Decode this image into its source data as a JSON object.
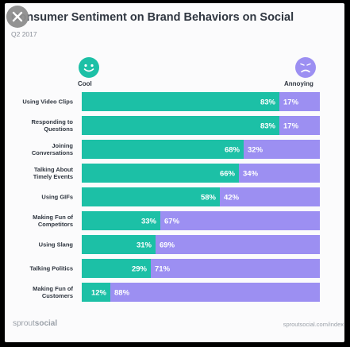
{
  "chart_data": {
    "type": "bar",
    "title": "Consumer Sentiment on Brand Behaviors on Social",
    "subtitle": "Q2 2017",
    "stacked": true,
    "orientation": "horizontal",
    "xlim": [
      0,
      100
    ],
    "categories": [
      [
        "Using Video Clips"
      ],
      [
        "Responding to",
        "Questions"
      ],
      [
        "Joining",
        "Conversations"
      ],
      [
        "Talking About",
        "Timely Events"
      ],
      [
        "Using GIFs"
      ],
      [
        "Making Fun of",
        "Competitors"
      ],
      [
        "Using Slang"
      ],
      [
        "Talking Politics"
      ],
      [
        "Making Fun of",
        "Customers"
      ]
    ],
    "series": [
      {
        "name": "Cool",
        "color": "#1cc0a6",
        "values": [
          83,
          83,
          68,
          66,
          58,
          33,
          31,
          29,
          12
        ]
      },
      {
        "name": "Annoying",
        "color": "#9c8ff2",
        "values": [
          17,
          17,
          32,
          34,
          42,
          67,
          69,
          71,
          88
        ]
      }
    ],
    "legend_placement": "top"
  },
  "legend": {
    "cool_icon": "smiling-face-icon",
    "annoying_icon": "frowning-face-icon"
  },
  "footer": {
    "brand_light": "sprout",
    "brand_bold": "social",
    "url": "sproutsocial.com/index"
  },
  "overlay": {
    "close_icon": "close-icon"
  }
}
